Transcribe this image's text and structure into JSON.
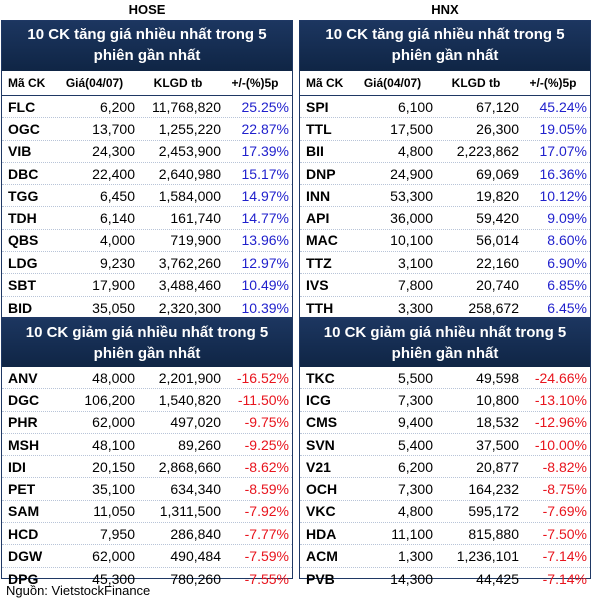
{
  "exchanges": {
    "left": "HOSE",
    "right": "HNX"
  },
  "columns": {
    "code": "Mã CK",
    "price": "Giá(04/07)",
    "volume": "KLGD tb",
    "change": "+/-(%)5p"
  },
  "hose_up": {
    "title": "10 CK tăng giá nhiều nhất trong 5 phiên gần nhất",
    "rows": [
      {
        "code": "FLC",
        "price": "6,200",
        "volume": "11,768,820",
        "change": "25.25%"
      },
      {
        "code": "OGC",
        "price": "13,700",
        "volume": "1,255,220",
        "change": "22.87%"
      },
      {
        "code": "VIB",
        "price": "24,300",
        "volume": "2,453,900",
        "change": "17.39%"
      },
      {
        "code": "DBC",
        "price": "22,400",
        "volume": "2,640,980",
        "change": "15.17%"
      },
      {
        "code": "TGG",
        "price": "6,450",
        "volume": "1,584,000",
        "change": "14.97%"
      },
      {
        "code": "TDH",
        "price": "6,140",
        "volume": "161,740",
        "change": "14.77%"
      },
      {
        "code": "QBS",
        "price": "4,000",
        "volume": "719,900",
        "change": "13.96%"
      },
      {
        "code": "LDG",
        "price": "9,230",
        "volume": "3,762,260",
        "change": "12.97%"
      },
      {
        "code": "SBT",
        "price": "17,900",
        "volume": "3,488,460",
        "change": "10.49%"
      },
      {
        "code": "BID",
        "price": "35,050",
        "volume": "2,320,300",
        "change": "10.39%"
      }
    ]
  },
  "hnx_up": {
    "title": "10 CK tăng giá nhiều nhất trong 5 phiên gần nhất",
    "rows": [
      {
        "code": "SPI",
        "price": "6,100",
        "volume": "67,120",
        "change": "45.24%"
      },
      {
        "code": "TTL",
        "price": "17,500",
        "volume": "26,300",
        "change": "19.05%"
      },
      {
        "code": "BII",
        "price": "4,800",
        "volume": "2,223,862",
        "change": "17.07%"
      },
      {
        "code": "DNP",
        "price": "24,900",
        "volume": "69,069",
        "change": "16.36%"
      },
      {
        "code": "INN",
        "price": "53,300",
        "volume": "19,820",
        "change": "10.12%"
      },
      {
        "code": "API",
        "price": "36,000",
        "volume": "59,420",
        "change": "9.09%"
      },
      {
        "code": "MAC",
        "price": "10,100",
        "volume": "56,014",
        "change": "8.60%"
      },
      {
        "code": "TTZ",
        "price": "3,100",
        "volume": "22,160",
        "change": "6.90%"
      },
      {
        "code": "IVS",
        "price": "7,800",
        "volume": "20,740",
        "change": "6.85%"
      },
      {
        "code": "TTH",
        "price": "3,300",
        "volume": "258,672",
        "change": "6.45%"
      }
    ]
  },
  "hose_down": {
    "title": "10 CK giảm giá nhiều nhất trong 5 phiên gần nhất",
    "rows": [
      {
        "code": "ANV",
        "price": "48,000",
        "volume": "2,201,900",
        "change": "-16.52%"
      },
      {
        "code": "DGC",
        "price": "106,200",
        "volume": "1,540,820",
        "change": "-11.50%"
      },
      {
        "code": "PHR",
        "price": "62,000",
        "volume": "497,020",
        "change": "-9.75%"
      },
      {
        "code": "MSH",
        "price": "48,100",
        "volume": "89,260",
        "change": "-9.25%"
      },
      {
        "code": "IDI",
        "price": "20,150",
        "volume": "2,868,660",
        "change": "-8.62%"
      },
      {
        "code": "PET",
        "price": "35,100",
        "volume": "634,340",
        "change": "-8.59%"
      },
      {
        "code": "SAM",
        "price": "11,050",
        "volume": "1,311,500",
        "change": "-7.92%"
      },
      {
        "code": "HCD",
        "price": "7,950",
        "volume": "286,840",
        "change": "-7.77%"
      },
      {
        "code": "DGW",
        "price": "62,000",
        "volume": "490,484",
        "change": "-7.59%"
      },
      {
        "code": "DPG",
        "price": "45,300",
        "volume": "780,260",
        "change": "-7.55%"
      }
    ]
  },
  "hnx_down": {
    "title": "10 CK giảm giá nhiều nhất trong 5 phiên gần nhất",
    "rows": [
      {
        "code": "TKC",
        "price": "5,500",
        "volume": "49,598",
        "change": "-24.66%"
      },
      {
        "code": "ICG",
        "price": "7,300",
        "volume": "10,800",
        "change": "-13.10%"
      },
      {
        "code": "CMS",
        "price": "9,400",
        "volume": "18,532",
        "change": "-12.96%"
      },
      {
        "code": "SVN",
        "price": "5,400",
        "volume": "37,500",
        "change": "-10.00%"
      },
      {
        "code": "V21",
        "price": "6,200",
        "volume": "20,877",
        "change": "-8.82%"
      },
      {
        "code": "OCH",
        "price": "7,300",
        "volume": "164,232",
        "change": "-8.75%"
      },
      {
        "code": "VKC",
        "price": "4,800",
        "volume": "595,172",
        "change": "-7.69%"
      },
      {
        "code": "HDA",
        "price": "11,100",
        "volume": "815,880",
        "change": "-7.50%"
      },
      {
        "code": "ACM",
        "price": "1,300",
        "volume": "1,236,101",
        "change": "-7.14%"
      },
      {
        "code": "PVB",
        "price": "14,300",
        "volume": "44,425",
        "change": "-7.14%"
      }
    ]
  },
  "source": "Nguồn: VietstockFinance",
  "colors": {
    "header_bg": "#1c3660",
    "up": "#1f1fcc",
    "down": "#e8141d",
    "border": "#1f3864"
  }
}
